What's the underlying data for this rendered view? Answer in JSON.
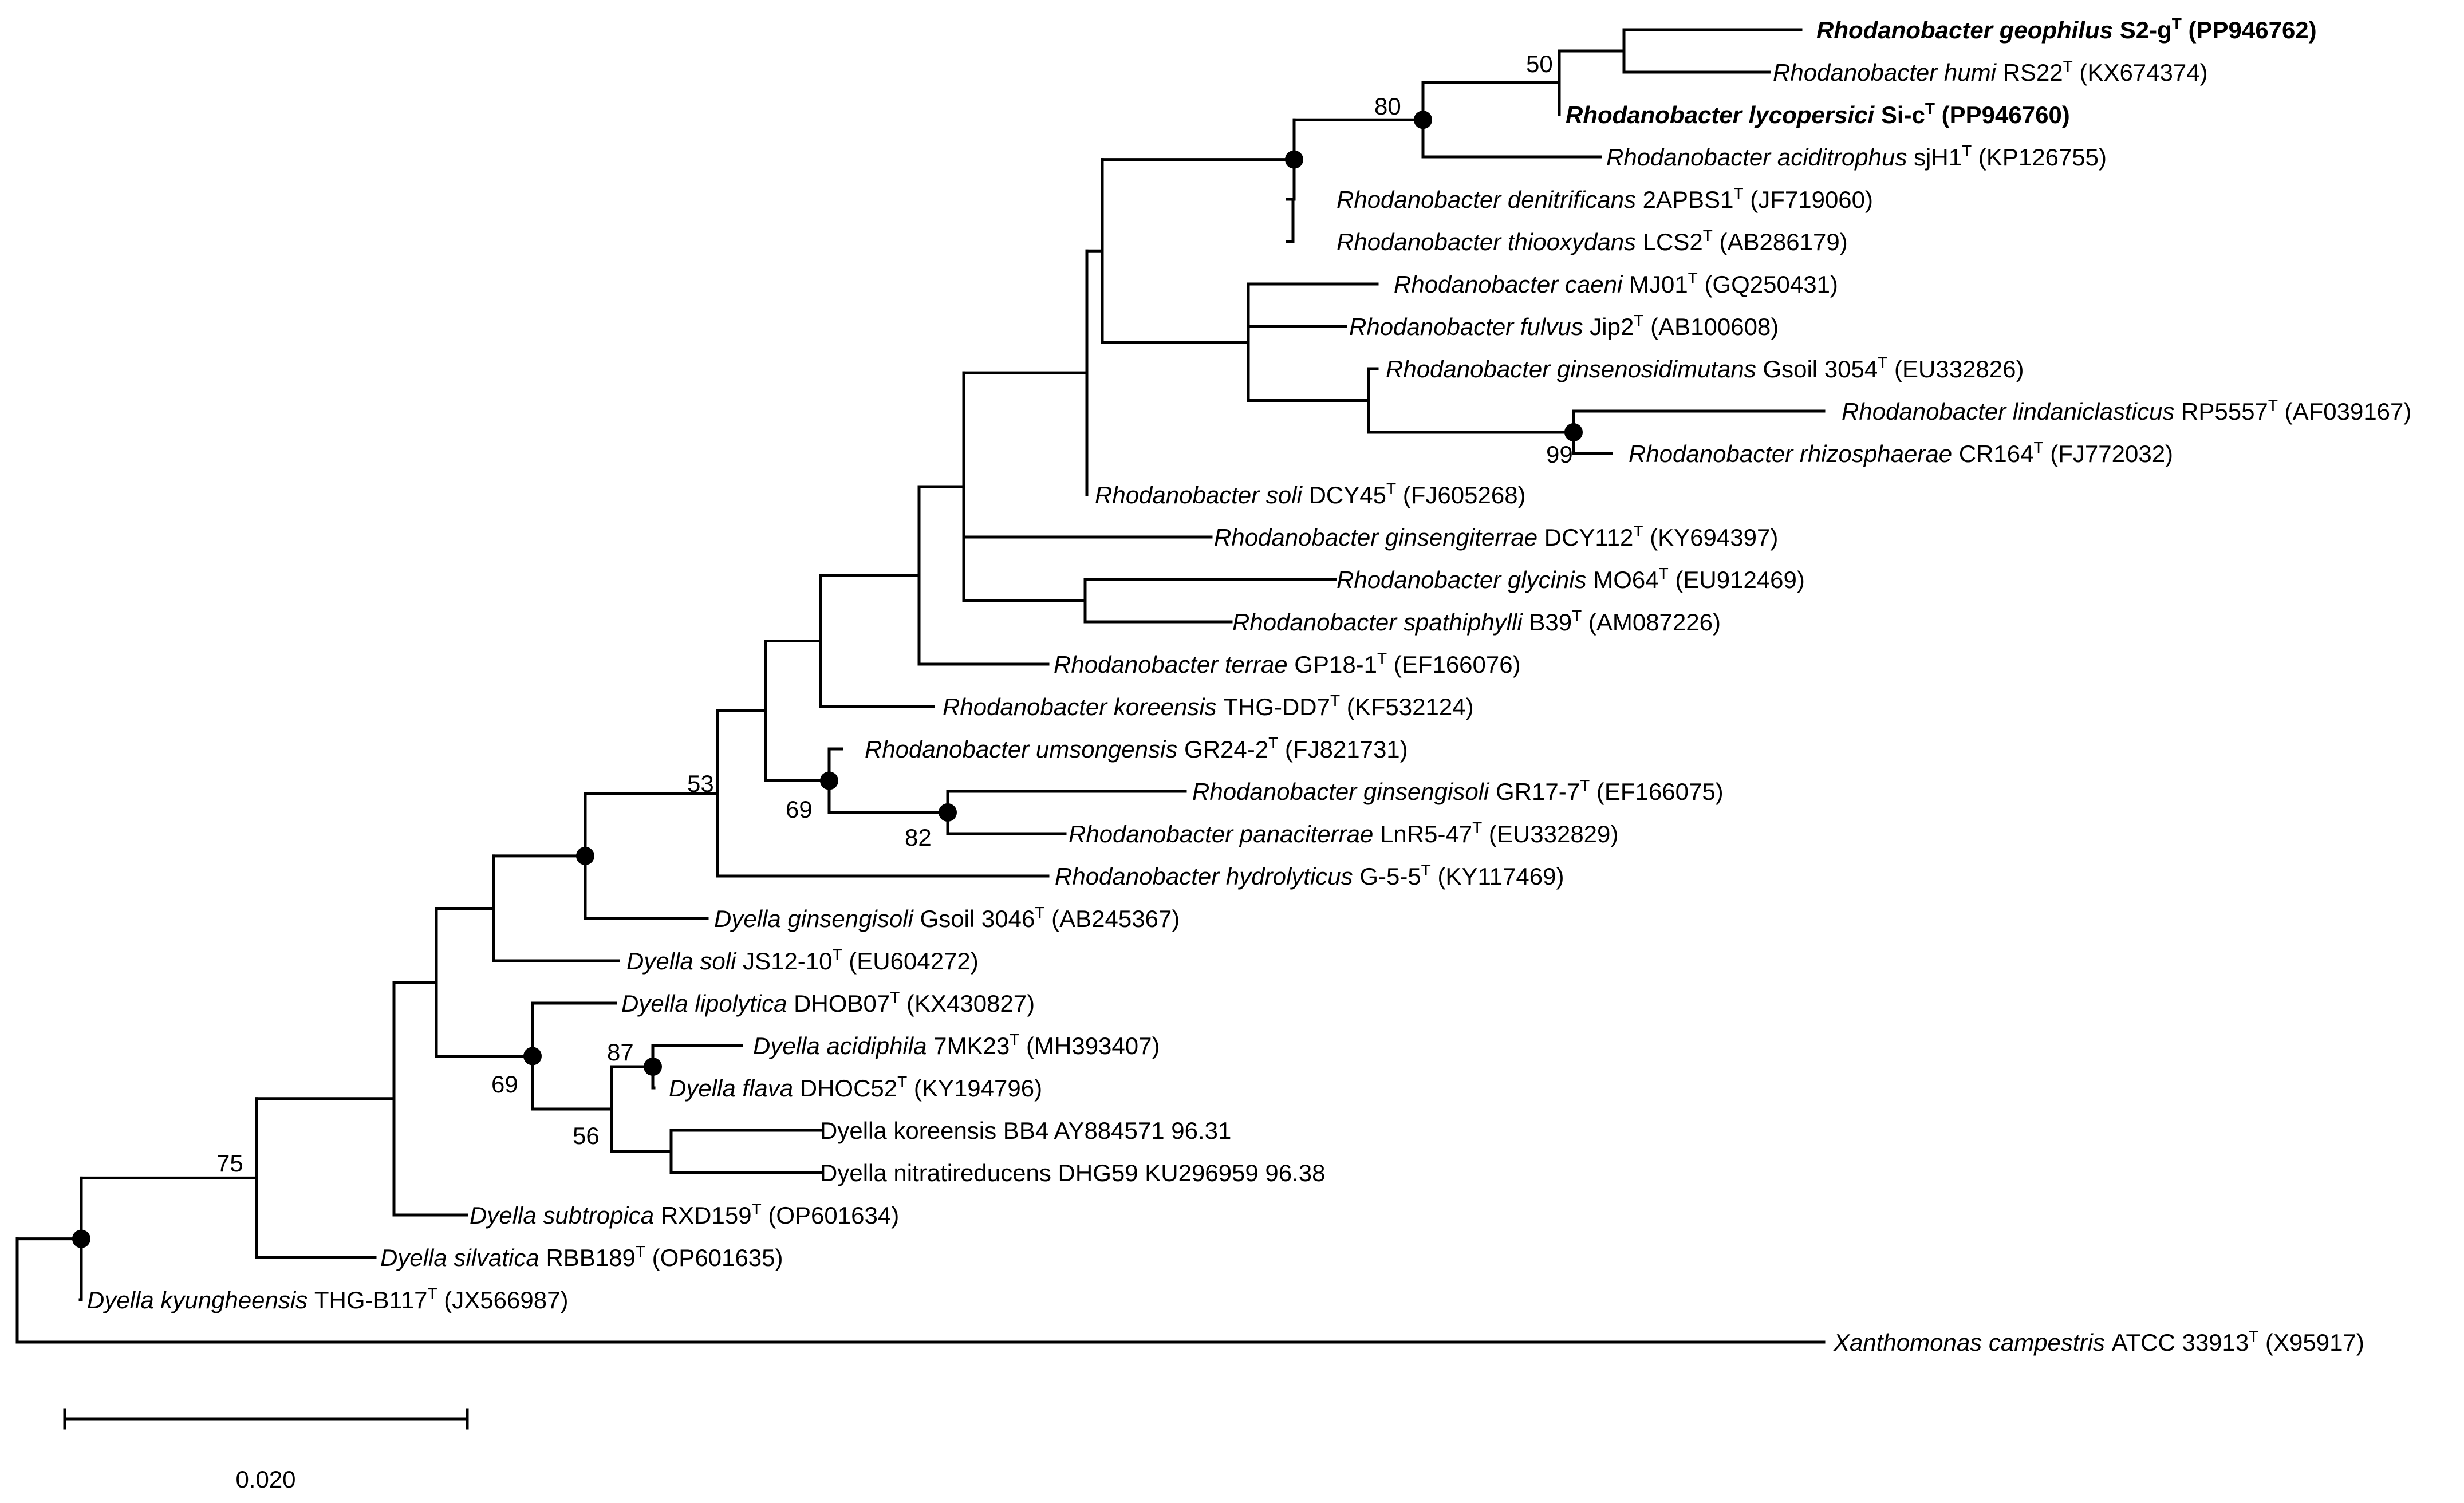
{
  "figure": {
    "type": "phylogenetic-tree",
    "scale_bar_label": "0.020"
  },
  "colors": {
    "line": "#000000",
    "text": "#000000",
    "background": "#ffffff"
  },
  "taxa": [
    {
      "id": "geophilus",
      "genus": "Rhodanobacter",
      "species": "geophilus",
      "strain": "S2-g",
      "type_strain": true,
      "accession": "(PP946762)",
      "bold": true
    },
    {
      "id": "humi",
      "genus": "Rhodanobacter",
      "species": "humi",
      "strain": "RS22",
      "type_strain": true,
      "accession": "(KX674374)",
      "bold": false
    },
    {
      "id": "lycopersici",
      "genus": "Rhodanobacter",
      "species": "lycopersici",
      "strain": "Si-c",
      "type_strain": true,
      "accession": "(PP946760)",
      "bold": true
    },
    {
      "id": "aciditrophus",
      "genus": "Rhodanobacter",
      "species": "aciditrophus",
      "strain": "sjH1",
      "type_strain": true,
      "accession": "(KP126755)",
      "bold": false
    },
    {
      "id": "denitrificans",
      "genus": "Rhodanobacter",
      "species": "denitrificans",
      "strain": "2APBS1",
      "type_strain": true,
      "accession": "(JF719060)",
      "bold": false
    },
    {
      "id": "thiooxydans",
      "genus": "Rhodanobacter",
      "species": "thiooxydans",
      "strain": "LCS2",
      "type_strain": true,
      "accession": "(AB286179)",
      "bold": false
    },
    {
      "id": "caeni",
      "genus": "Rhodanobacter",
      "species": "caeni",
      "strain": "MJ01",
      "type_strain": true,
      "accession": "(GQ250431)",
      "bold": false
    },
    {
      "id": "fulvus",
      "genus": "Rhodanobacter",
      "species": "fulvus",
      "strain": "Jip2",
      "type_strain": true,
      "accession": "(AB100608)",
      "bold": false
    },
    {
      "id": "ginsenosidimutans",
      "genus": "Rhodanobacter",
      "species": "ginsenosidimutans",
      "strain": "Gsoil 3054",
      "type_strain": true,
      "accession": "(EU332826)",
      "bold": false
    },
    {
      "id": "lindaniclasticus",
      "genus": "Rhodanobacter",
      "species": "lindaniclasticus",
      "strain": "RP5557",
      "type_strain": true,
      "accession": "(AF039167)",
      "bold": false
    },
    {
      "id": "rhizosphaerae",
      "genus": "Rhodanobacter",
      "species": "rhizosphaerae",
      "strain": "CR164",
      "type_strain": true,
      "accession": "(FJ772032)",
      "bold": false
    },
    {
      "id": "soli",
      "genus": "Rhodanobacter",
      "species": "soli",
      "strain": "DCY45",
      "type_strain": true,
      "accession": "(FJ605268)",
      "bold": false
    },
    {
      "id": "ginsengiterrae",
      "genus": "Rhodanobacter",
      "species": "ginsengiterrae",
      "strain": "DCY112",
      "type_strain": true,
      "accession": "(KY694397)",
      "bold": false
    },
    {
      "id": "glycinis",
      "genus": "Rhodanobacter",
      "species": "glycinis",
      "strain": "MO64",
      "type_strain": true,
      "accession": "(EU912469)",
      "bold": false
    },
    {
      "id": "spathiphylli",
      "genus": "Rhodanobacter",
      "species": "spathiphylli",
      "strain": "B39",
      "type_strain": true,
      "accession": "(AM087226)",
      "bold": false
    },
    {
      "id": "terrae",
      "genus": "Rhodanobacter",
      "species": "terrae",
      "strain": "GP18-1",
      "type_strain": true,
      "accession": "(EF166076)",
      "bold": false
    },
    {
      "id": "koreensis",
      "genus": "Rhodanobacter",
      "species": "koreensis",
      "strain": "THG-DD7",
      "type_strain": true,
      "accession": "(KF532124)",
      "bold": false
    },
    {
      "id": "umsongensis",
      "genus": "Rhodanobacter",
      "species": "umsongensis",
      "strain": "GR24-2",
      "type_strain": true,
      "accession": "(FJ821731)",
      "bold": false
    },
    {
      "id": "ginsengisoli",
      "genus": "Rhodanobacter",
      "species": "ginsengisoli",
      "strain": "GR17-7",
      "type_strain": true,
      "accession": "(EF166075)",
      "bold": false
    },
    {
      "id": "panaciterrae",
      "genus": "Rhodanobacter",
      "species": "panaciterrae",
      "strain": "LnR5-47",
      "type_strain": true,
      "accession": "(EU332829)",
      "bold": false
    },
    {
      "id": "hydrolyticus",
      "genus": "Rhodanobacter",
      "species": "hydrolyticus",
      "strain": "G-5-5",
      "type_strain": true,
      "accession": "(KY117469)",
      "bold": false
    },
    {
      "id": "d_ginsengisoli",
      "genus": "Dyella",
      "species": "ginsengisoli",
      "strain": "Gsoil 3046",
      "type_strain": true,
      "accession": "(AB245367)",
      "bold": false
    },
    {
      "id": "d_soli",
      "genus": "Dyella",
      "species": "soli",
      "strain": "JS12-10",
      "type_strain": true,
      "accession": "(EU604272)",
      "bold": false
    },
    {
      "id": "d_lipolytica",
      "genus": "Dyella",
      "species": "lipolytica",
      "strain": "DHOB07",
      "type_strain": true,
      "accession": "(KX430827)",
      "bold": false
    },
    {
      "id": "d_acidiphila",
      "genus": "Dyella",
      "species": "acidiphila",
      "strain": "7MK23",
      "type_strain": true,
      "accession": "(MH393407)",
      "bold": false
    },
    {
      "id": "d_flava",
      "genus": "Dyella",
      "species": "flava",
      "strain": "DHOC52",
      "type_strain": true,
      "accession": "(KY194796)",
      "bold": false
    },
    {
      "id": "d_koreensis",
      "plain": "Dyella koreensis BB4 AY884571 96.31"
    },
    {
      "id": "d_nitratireducens",
      "plain": "Dyella nitratireducens DHG59 KU296959 96.38"
    },
    {
      "id": "d_subtropica",
      "genus": "Dyella",
      "species": "subtropica",
      "strain": "RXD159",
      "type_strain": true,
      "accession": "(OP601634)",
      "bold": false
    },
    {
      "id": "d_silvatica",
      "genus": "Dyella",
      "species": "silvatica",
      "strain": "RBB189",
      "type_strain": true,
      "accession": "(OP601635)",
      "bold": false
    },
    {
      "id": "d_kyungheensis",
      "genus": "Dyella",
      "species": "kyungheensis",
      "strain": "THG-B117",
      "type_strain": true,
      "accession": "(JX566987)",
      "bold": false
    },
    {
      "id": "x_campestris",
      "genus": "Xanthomonas",
      "species": "campestris",
      "strain": "ATCC 33913",
      "type_strain": true,
      "accession": "(X95917)",
      "bold": false
    }
  ],
  "bootstrap_values": [
    {
      "node": "geophilus_humi",
      "value": "50"
    },
    {
      "node": "geophilus_lycopersici_aciditrophus",
      "value": "80"
    },
    {
      "node": "lindaniclasticus_rhizosphaerae",
      "value": "99"
    },
    {
      "node": "rhodanobacter_core",
      "value": "53"
    },
    {
      "node": "umsongensis_clade",
      "value": "69"
    },
    {
      "node": "ginsengisoli_panaciterrae",
      "value": "82"
    },
    {
      "node": "acidiphila_flava",
      "value": "87"
    },
    {
      "node": "dyella_lipolytica_clade",
      "value": "69"
    },
    {
      "node": "dyella_acidiphila_koreensis",
      "value": "56"
    },
    {
      "node": "ingroup",
      "value": "75"
    }
  ]
}
